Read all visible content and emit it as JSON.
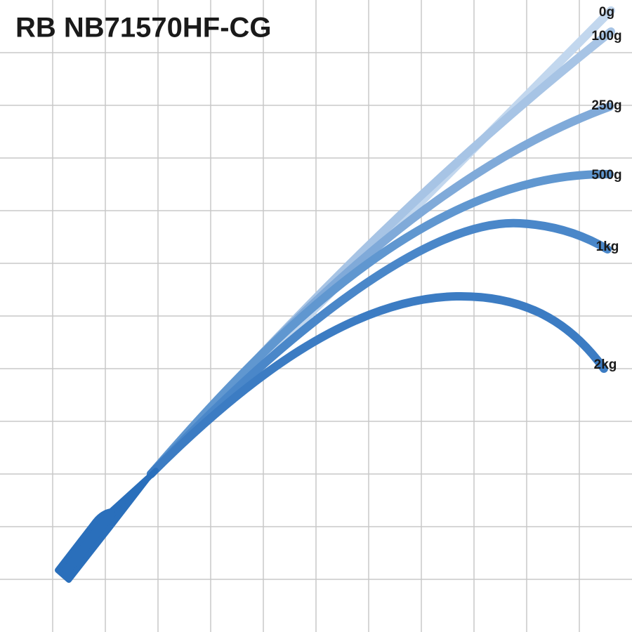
{
  "title": "RB NB71570HF-CG",
  "curves": [
    {
      "label": "0g"
    },
    {
      "label": "100g"
    },
    {
      "label": "250g"
    },
    {
      "label": "500g"
    },
    {
      "label": "1kg"
    },
    {
      "label": "2kg"
    }
  ]
}
